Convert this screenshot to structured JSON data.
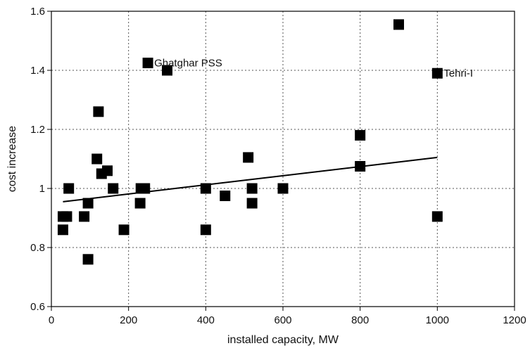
{
  "chart_data": {
    "type": "scatter",
    "title": "",
    "xlabel": "installed capacity, MW",
    "ylabel": "cost increase",
    "xlim": [
      0,
      1200
    ],
    "ylim": [
      0.6,
      1.6
    ],
    "xticks": [
      "0",
      "200",
      "400",
      "600",
      "800",
      "1000",
      "1200"
    ],
    "yticks": [
      "0.6",
      "0.8",
      "1",
      "1.2",
      "1.4",
      "1.6"
    ],
    "grid": "dotted",
    "legend": "none",
    "marker": "square",
    "marker_color": "#000000",
    "series": [
      {
        "points": [
          {
            "x": 30,
            "y": 0.86
          },
          {
            "x": 30,
            "y": 0.905
          },
          {
            "x": 40,
            "y": 0.905
          },
          {
            "x": 45,
            "y": 1.0
          },
          {
            "x": 85,
            "y": 0.905
          },
          {
            "x": 95,
            "y": 0.95
          },
          {
            "x": 95,
            "y": 0.76
          },
          {
            "x": 118,
            "y": 1.1
          },
          {
            "x": 122,
            "y": 1.26
          },
          {
            "x": 130,
            "y": 1.05
          },
          {
            "x": 145,
            "y": 1.06
          },
          {
            "x": 160,
            "y": 1.0
          },
          {
            "x": 188,
            "y": 0.86
          },
          {
            "x": 230,
            "y": 0.95
          },
          {
            "x": 232,
            "y": 1.0
          },
          {
            "x": 242,
            "y": 1.0
          },
          {
            "x": 250,
            "y": 1.425
          },
          {
            "x": 300,
            "y": 1.4
          },
          {
            "x": 400,
            "y": 1.0
          },
          {
            "x": 400,
            "y": 0.86
          },
          {
            "x": 450,
            "y": 0.975
          },
          {
            "x": 510,
            "y": 1.105
          },
          {
            "x": 520,
            "y": 1.0
          },
          {
            "x": 520,
            "y": 0.95
          },
          {
            "x": 600,
            "y": 1.0
          },
          {
            "x": 800,
            "y": 1.18
          },
          {
            "x": 800,
            "y": 1.075
          },
          {
            "x": 900,
            "y": 1.555
          },
          {
            "x": 1000,
            "y": 1.39
          },
          {
            "x": 1000,
            "y": 0.905
          }
        ]
      }
    ],
    "trendline": {
      "x": [
        30,
        1000
      ],
      "y": [
        0.955,
        1.105
      ]
    },
    "annotations": [
      {
        "text": "Ghatghar PSS",
        "x": 250,
        "y": 1.425
      },
      {
        "text": "Tehri-I",
        "x": 1000,
        "y": 1.39
      }
    ]
  }
}
